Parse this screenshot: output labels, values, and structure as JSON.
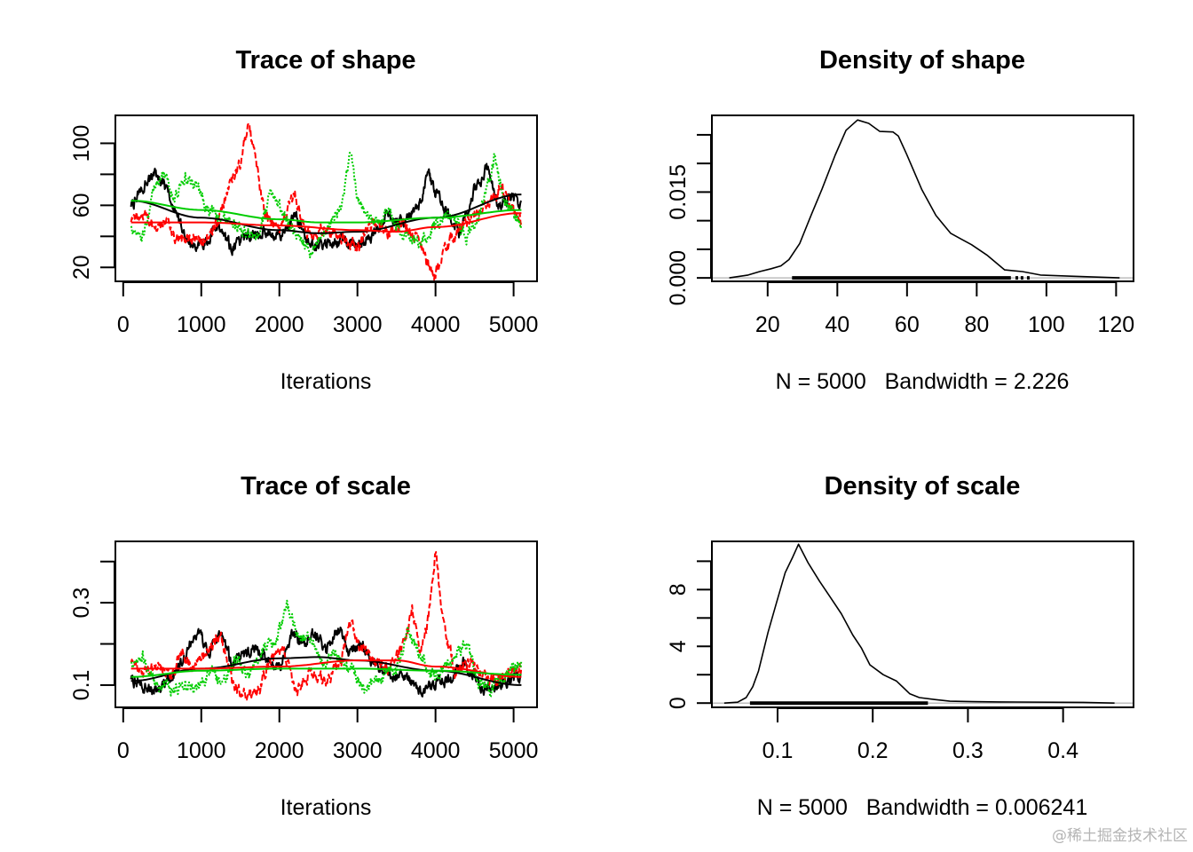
{
  "watermark": "@稀土掘金技术社区",
  "colors": {
    "chain1": "#000000",
    "chain2": "#ff0000",
    "chain3": "#00cd00",
    "zero_line": "#bebebe"
  },
  "chart_data": [
    {
      "id": "trace-shape",
      "type": "line",
      "title": "Trace of shape",
      "xlabel": "Iterations",
      "ylabel": "",
      "xlim": [
        -100,
        5300
      ],
      "ylim": [
        11,
        118
      ],
      "xticks": [
        0,
        1000,
        2000,
        3000,
        4000,
        5000
      ],
      "xtick_labels": [
        "0",
        "1000",
        "2000",
        "3000",
        "4000",
        "5000"
      ],
      "yticks": [
        20,
        40,
        60,
        80,
        100
      ],
      "ytick_labels": [
        "20",
        "",
        "60",
        "",
        "100"
      ],
      "series": [
        {
          "name": "chain 1",
          "color": "#000000",
          "style": "solid",
          "x": [
            100,
            250,
            400,
            550,
            700,
            850,
            1000,
            1200,
            1400,
            1600,
            1800,
            2000,
            2200,
            2400,
            2600,
            2800,
            3000,
            3200,
            3400,
            3600,
            3800,
            3900,
            4000,
            4100,
            4300,
            4500,
            4650,
            4800,
            4950,
            5100
          ],
          "y": [
            58,
            72,
            80,
            70,
            50,
            36,
            33,
            45,
            32,
            40,
            42,
            40,
            52,
            35,
            34,
            38,
            34,
            40,
            55,
            48,
            62,
            82,
            68,
            58,
            42,
            70,
            85,
            58,
            66,
            60
          ]
        },
        {
          "name": "chain 2",
          "color": "#ff0000",
          "style": "dashed",
          "x": [
            100,
            250,
            400,
            550,
            700,
            850,
            1000,
            1200,
            1350,
            1500,
            1600,
            1700,
            1800,
            2000,
            2200,
            2300,
            2400,
            2600,
            2800,
            3000,
            3200,
            3400,
            3600,
            3800,
            3900,
            4000,
            4100,
            4300,
            4500,
            4700,
            4850,
            5000,
            5100
          ],
          "y": [
            48,
            55,
            45,
            50,
            38,
            40,
            35,
            48,
            70,
            88,
            112,
            90,
            55,
            45,
            68,
            50,
            40,
            45,
            38,
            32,
            50,
            42,
            48,
            35,
            22,
            16,
            30,
            45,
            55,
            62,
            72,
            55,
            50
          ]
        },
        {
          "name": "chain 3",
          "color": "#00cd00",
          "style": "dotted",
          "x": [
            100,
            250,
            400,
            500,
            650,
            800,
            950,
            1100,
            1300,
            1500,
            1700,
            1900,
            2050,
            2200,
            2400,
            2600,
            2800,
            2900,
            3000,
            3200,
            3400,
            3600,
            3800,
            4000,
            4200,
            4400,
            4600,
            4750,
            4900,
            5100
          ],
          "y": [
            45,
            40,
            70,
            80,
            65,
            78,
            72,
            55,
            52,
            45,
            38,
            68,
            55,
            42,
            30,
            45,
            60,
            95,
            65,
            48,
            55,
            40,
            35,
            48,
            55,
            38,
            60,
            90,
            62,
            46
          ]
        },
        {
          "name": "chain 1 smooth",
          "color": "#000000",
          "style": "solid-smooth",
          "x": [
            100,
            1000,
            2000,
            2500,
            3000,
            4000,
            5100
          ],
          "y": [
            63,
            52,
            44,
            42,
            43,
            52,
            67
          ]
        },
        {
          "name": "chain 2 smooth",
          "color": "#ff0000",
          "style": "solid-smooth",
          "x": [
            100,
            1000,
            2000,
            3000,
            3500,
            4000,
            5100
          ],
          "y": [
            49,
            49,
            47,
            44,
            43,
            46,
            55
          ]
        },
        {
          "name": "chain 3 smooth",
          "color": "#00cd00",
          "style": "solid-smooth",
          "x": [
            100,
            1000,
            2000,
            2500,
            3000,
            4000,
            5100
          ],
          "y": [
            63,
            57,
            51,
            49,
            49,
            52,
            57
          ]
        }
      ]
    },
    {
      "id": "density-shape",
      "type": "line",
      "title": "Density of shape",
      "xlabel": "N = 5000   Bandwidth = 2.226",
      "ylabel": "",
      "xlim": [
        4,
        125
      ],
      "ylim": [
        -0.0006,
        0.0284
      ],
      "xticks": [
        20,
        40,
        60,
        80,
        100,
        120
      ],
      "xtick_labels": [
        "20",
        "40",
        "60",
        "80",
        "100",
        "120"
      ],
      "yticks": [
        0.0,
        0.005,
        0.01,
        0.015,
        0.02,
        0.025
      ],
      "ytick_labels": [
        "0.000",
        "",
        "",
        "0.015",
        "",
        ""
      ],
      "series": [
        {
          "name": "density",
          "color": "#000000",
          "x": [
            9,
            14.4,
            17.7,
            21,
            23.8,
            26.1,
            29.2,
            32.5,
            35.6,
            39.4,
            42.5,
            45.8,
            49,
            52.2,
            56,
            57.5,
            59.9,
            64.2,
            68.3,
            72.5,
            75.5,
            78.5,
            82.9,
            88,
            93.1,
            98.3,
            107,
            121
          ],
          "y": [
            0,
            0.0005,
            0.0011,
            0.0016,
            0.0021,
            0.0032,
            0.006,
            0.011,
            0.0155,
            0.0215,
            0.0258,
            0.0276,
            0.027,
            0.0256,
            0.0255,
            0.0248,
            0.0216,
            0.0155,
            0.0109,
            0.0078,
            0.0068,
            0.0058,
            0.004,
            0.0014,
            0.0011,
            0.0005,
            0.0003,
            0
          ]
        }
      ],
      "rug": {
        "from": 27,
        "to": 89.8,
        "extra": [
          91.5,
          93,
          94.8
        ]
      }
    },
    {
      "id": "trace-scale",
      "type": "line",
      "title": "Trace of scale",
      "xlabel": "Iterations",
      "ylabel": "",
      "xlim": [
        -100,
        5300
      ],
      "ylim": [
        0.046,
        0.449
      ],
      "xticks": [
        0,
        1000,
        2000,
        3000,
        4000,
        5000
      ],
      "xtick_labels": [
        "0",
        "1000",
        "2000",
        "3000",
        "4000",
        "5000"
      ],
      "yticks": [
        0.1,
        0.2,
        0.3,
        0.4
      ],
      "ytick_labels": [
        "0.1",
        "",
        "0.3",
        ""
      ],
      "series": [
        {
          "name": "chain 1",
          "color": "#000000",
          "style": "solid",
          "x": [
            100,
            250,
            400,
            550,
            700,
            850,
            950,
            1100,
            1250,
            1400,
            1550,
            1700,
            1850,
            2000,
            2150,
            2300,
            2450,
            2600,
            2750,
            2900,
            3050,
            3200,
            3400,
            3600,
            3800,
            4000,
            4200,
            4350,
            4500,
            4700,
            4900,
            5100
          ],
          "y": [
            0.11,
            0.1,
            0.08,
            0.1,
            0.13,
            0.2,
            0.23,
            0.18,
            0.22,
            0.15,
            0.17,
            0.19,
            0.16,
            0.14,
            0.22,
            0.2,
            0.23,
            0.18,
            0.24,
            0.18,
            0.2,
            0.15,
            0.13,
            0.12,
            0.09,
            0.1,
            0.11,
            0.16,
            0.12,
            0.08,
            0.11,
            0.12
          ]
        },
        {
          "name": "chain 2",
          "color": "#ff0000",
          "style": "dashed",
          "x": [
            100,
            300,
            450,
            600,
            750,
            900,
            1100,
            1250,
            1400,
            1600,
            1750,
            1900,
            2050,
            2200,
            2400,
            2600,
            2800,
            2900,
            3000,
            3200,
            3400,
            3600,
            3700,
            3800,
            3900,
            4000,
            4100,
            4250,
            4450,
            4700,
            4900,
            5100
          ],
          "y": [
            0.15,
            0.13,
            0.15,
            0.12,
            0.18,
            0.14,
            0.19,
            0.22,
            0.1,
            0.07,
            0.09,
            0.17,
            0.19,
            0.09,
            0.13,
            0.11,
            0.16,
            0.26,
            0.2,
            0.16,
            0.14,
            0.2,
            0.29,
            0.17,
            0.25,
            0.43,
            0.25,
            0.13,
            0.16,
            0.11,
            0.12,
            0.14
          ]
        },
        {
          "name": "chain 3",
          "color": "#00cd00",
          "style": "dotted",
          "x": [
            100,
            250,
            400,
            600,
            800,
            950,
            1100,
            1300,
            1450,
            1600,
            1800,
            1950,
            2100,
            2250,
            2400,
            2550,
            2700,
            2900,
            3100,
            3300,
            3500,
            3650,
            3800,
            4000,
            4200,
            4400,
            4550,
            4700,
            4850,
            5100
          ],
          "y": [
            0.15,
            0.17,
            0.1,
            0.09,
            0.1,
            0.09,
            0.13,
            0.11,
            0.17,
            0.12,
            0.19,
            0.2,
            0.3,
            0.21,
            0.22,
            0.15,
            0.18,
            0.14,
            0.09,
            0.12,
            0.14,
            0.23,
            0.17,
            0.12,
            0.16,
            0.2,
            0.11,
            0.09,
            0.12,
            0.15
          ]
        },
        {
          "name": "chain 1 smooth",
          "color": "#000000",
          "style": "solid-smooth",
          "x": [
            100,
            1000,
            2000,
            2500,
            3000,
            4000,
            5100
          ],
          "y": [
            0.11,
            0.14,
            0.165,
            0.168,
            0.16,
            0.135,
            0.1
          ]
        },
        {
          "name": "chain 2 smooth",
          "color": "#ff0000",
          "style": "solid-smooth",
          "x": [
            100,
            1000,
            2000,
            3000,
            3500,
            4000,
            5100
          ],
          "y": [
            0.14,
            0.14,
            0.145,
            0.16,
            0.16,
            0.145,
            0.12
          ]
        },
        {
          "name": "chain 3 smooth",
          "color": "#00cd00",
          "style": "solid-smooth",
          "x": [
            100,
            1000,
            2000,
            2500,
            3000,
            4000,
            5100
          ],
          "y": [
            0.12,
            0.135,
            0.14,
            0.14,
            0.14,
            0.135,
            0.125
          ]
        }
      ]
    },
    {
      "id": "density-scale",
      "type": "line",
      "title": "Density of scale",
      "xlabel": "N = 5000   Bandwidth = 0.006241",
      "ylabel": "",
      "xlim": [
        0.031,
        0.474
      ],
      "ylim": [
        -0.3,
        11.4
      ],
      "xticks": [
        0.1,
        0.2,
        0.3,
        0.4
      ],
      "xtick_labels": [
        "0.1",
        "0.2",
        "0.3",
        "0.4"
      ],
      "yticks": [
        0,
        2,
        4,
        6,
        8,
        10
      ],
      "ytick_labels": [
        "0",
        "",
        "4",
        "",
        "8",
        ""
      ],
      "series": [
        {
          "name": "density",
          "color": "#000000",
          "x": [
            0.044,
            0.058,
            0.067,
            0.074,
            0.08,
            0.09,
            0.099,
            0.108,
            0.116,
            0.122,
            0.132,
            0.144,
            0.155,
            0.167,
            0.179,
            0.188,
            0.197,
            0.211,
            0.225,
            0.239,
            0.249,
            0.265,
            0.281,
            0.305,
            0.333,
            0.421,
            0.454
          ],
          "y": [
            0,
            0.06,
            0.39,
            1.16,
            2.26,
            5.0,
            7.1,
            9.2,
            10.3,
            11.2,
            9.9,
            8.6,
            7.5,
            6.3,
            4.8,
            3.9,
            2.7,
            2.0,
            1.55,
            0.65,
            0.39,
            0.25,
            0.13,
            0.1,
            0.08,
            0.05,
            0
          ]
        }
      ],
      "rug": {
        "from": 0.071,
        "to": 0.258,
        "extra": []
      }
    }
  ]
}
